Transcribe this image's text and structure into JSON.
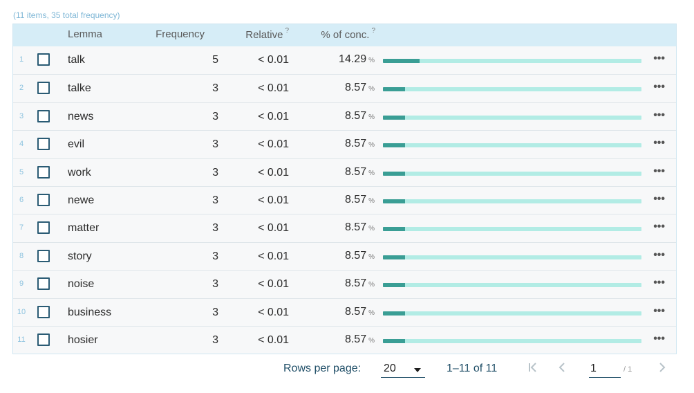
{
  "summary": "(11 items, 35 total frequency)",
  "table": {
    "headers": {
      "lemma": "Lemma",
      "frequency": "Frequency",
      "relative": "Relative",
      "relative_help": "?",
      "conc": "% of conc.",
      "conc_help": "?"
    },
    "rows": [
      {
        "index": "1",
        "lemma": "talk",
        "frequency": "5",
        "relative": "< 0.01",
        "conc": "14.29",
        "conc_unit": "%",
        "conc_value": 14.29,
        "more": "•••"
      },
      {
        "index": "2",
        "lemma": "talke",
        "frequency": "3",
        "relative": "< 0.01",
        "conc": "8.57",
        "conc_unit": "%",
        "conc_value": 8.57,
        "more": "•••"
      },
      {
        "index": "3",
        "lemma": "news",
        "frequency": "3",
        "relative": "< 0.01",
        "conc": "8.57",
        "conc_unit": "%",
        "conc_value": 8.57,
        "more": "•••"
      },
      {
        "index": "4",
        "lemma": "evil",
        "frequency": "3",
        "relative": "< 0.01",
        "conc": "8.57",
        "conc_unit": "%",
        "conc_value": 8.57,
        "more": "•••"
      },
      {
        "index": "5",
        "lemma": "work",
        "frequency": "3",
        "relative": "< 0.01",
        "conc": "8.57",
        "conc_unit": "%",
        "conc_value": 8.57,
        "more": "•••"
      },
      {
        "index": "6",
        "lemma": "newe",
        "frequency": "3",
        "relative": "< 0.01",
        "conc": "8.57",
        "conc_unit": "%",
        "conc_value": 8.57,
        "more": "•••"
      },
      {
        "index": "7",
        "lemma": "matter",
        "frequency": "3",
        "relative": "< 0.01",
        "conc": "8.57",
        "conc_unit": "%",
        "conc_value": 8.57,
        "more": "•••"
      },
      {
        "index": "8",
        "lemma": "story",
        "frequency": "3",
        "relative": "< 0.01",
        "conc": "8.57",
        "conc_unit": "%",
        "conc_value": 8.57,
        "more": "•••"
      },
      {
        "index": "9",
        "lemma": "noise",
        "frequency": "3",
        "relative": "< 0.01",
        "conc": "8.57",
        "conc_unit": "%",
        "conc_value": 8.57,
        "more": "•••"
      },
      {
        "index": "10",
        "lemma": "business",
        "frequency": "3",
        "relative": "< 0.01",
        "conc": "8.57",
        "conc_unit": "%",
        "conc_value": 8.57,
        "more": "•••"
      },
      {
        "index": "11",
        "lemma": "hosier",
        "frequency": "3",
        "relative": "< 0.01",
        "conc": "8.57",
        "conc_unit": "%",
        "conc_value": 8.57,
        "more": "•••"
      }
    ]
  },
  "pager": {
    "rows_per_page_label": "Rows per page:",
    "rows_per_page_value": "20",
    "range": "1–11 of 11",
    "page": "1",
    "page_total": "/ 1",
    "icons": {
      "first": "first-page-icon",
      "prev": "chevron-left-icon",
      "next": "chevron-right-icon",
      "more": "more-horizontal-icon"
    }
  },
  "colors": {
    "bar_fill": "#3a9e95",
    "bar_track": "#b2ece5",
    "header_bg": "#d6edf7"
  }
}
